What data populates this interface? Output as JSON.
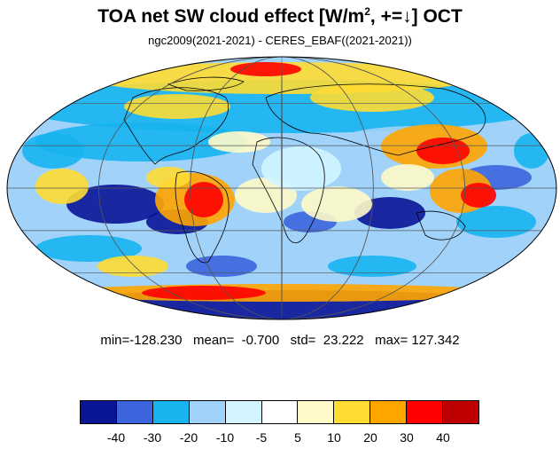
{
  "title": {
    "main": "TOA net SW cloud effect [W/m",
    "sup": "2",
    "suffix": ", +=↓]  OCT"
  },
  "subtitle": "ngc2009(2021-2021) - CERES_EBAF((2021-2021))",
  "stats": "min=-128.230   mean=  -0.700   std=  23.222   max= 127.342",
  "map": {
    "projection": "Mollweide",
    "field": "model minus observation difference"
  },
  "colorbar": {
    "colors": [
      "#0a1596",
      "#3c64dc",
      "#17b4f0",
      "#a0d2fa",
      "#d2f5ff",
      "#ffffff",
      "#fffac8",
      "#ffdc32",
      "#ffa500",
      "#ff0000",
      "#be0000"
    ],
    "ticks": [
      "-40",
      "-30",
      "-20",
      "-10",
      "-5",
      "5",
      "10",
      "20",
      "30",
      "40"
    ]
  }
}
